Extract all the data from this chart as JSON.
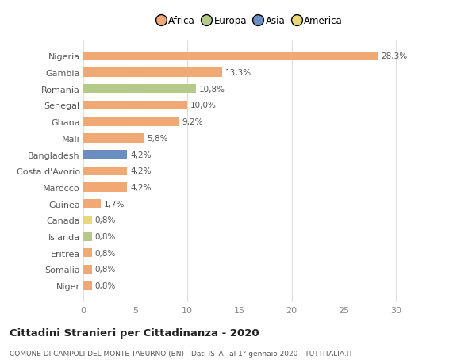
{
  "countries": [
    "Niger",
    "Somalia",
    "Eritrea",
    "Islanda",
    "Canada",
    "Guinea",
    "Marocco",
    "Costa d'Avorio",
    "Bangladesh",
    "Mali",
    "Ghana",
    "Senegal",
    "Romania",
    "Gambia",
    "Nigeria"
  ],
  "values": [
    0.8,
    0.8,
    0.8,
    0.8,
    0.8,
    1.7,
    4.2,
    4.2,
    4.2,
    5.8,
    9.2,
    10.0,
    10.8,
    13.3,
    28.3
  ],
  "labels": [
    "0,8%",
    "0,8%",
    "0,8%",
    "0,8%",
    "0,8%",
    "1,7%",
    "4,2%",
    "4,2%",
    "4,2%",
    "5,8%",
    "9,2%",
    "10,0%",
    "10,8%",
    "13,3%",
    "28,3%"
  ],
  "colors": [
    "#f0a875",
    "#f0a875",
    "#f0a875",
    "#b5c98a",
    "#e8d87a",
    "#f0a875",
    "#f0a875",
    "#f0a875",
    "#6b8dbf",
    "#f0a875",
    "#f0a875",
    "#f0a875",
    "#b5c98a",
    "#f0a875",
    "#f0a875"
  ],
  "legend": [
    {
      "label": "Africa",
      "color": "#f0a875"
    },
    {
      "label": "Europa",
      "color": "#b5c98a"
    },
    {
      "label": "Asia",
      "color": "#6b8dbf"
    },
    {
      "label": "America",
      "color": "#e8d87a"
    }
  ],
  "title": "Cittadini Stranieri per Cittadinanza - 2020",
  "subtitle": "COMUNE DI CAMPOLI DEL MONTE TABURNO (BN) - Dati ISTAT al 1° gennaio 2020 - TUTTITALIA.IT",
  "xlim": [
    0,
    32
  ],
  "xticks": [
    0,
    5,
    10,
    15,
    20,
    25,
    30
  ],
  "background_color": "#ffffff",
  "grid_color": "#e0e0e0"
}
